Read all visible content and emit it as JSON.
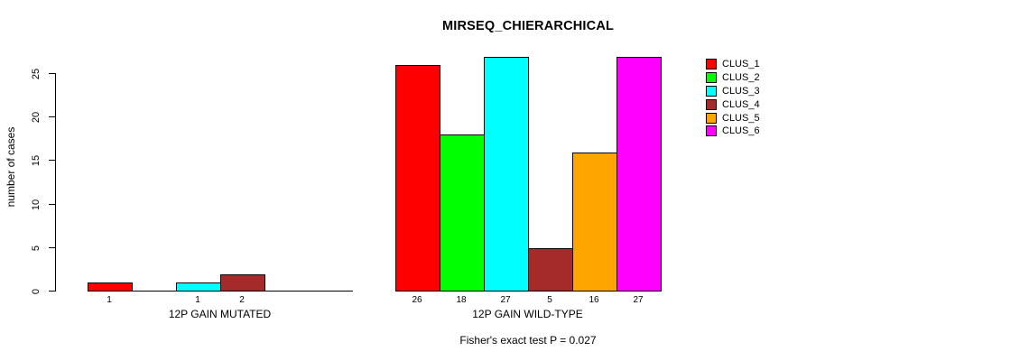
{
  "chart_data": {
    "type": "bar",
    "title": "MIRSEQ_CHIERARCHICAL",
    "ylabel": "number of cases",
    "xlabel": "",
    "ylim": [
      0,
      27
    ],
    "yticks": [
      0,
      5,
      10,
      15,
      20,
      25
    ],
    "grid": false,
    "legend_position": "top-right",
    "categories": [
      "12P GAIN MUTATED",
      "12P GAIN WILD-TYPE"
    ],
    "series": [
      {
        "name": "CLUS_1",
        "color": "#ff0000",
        "values": [
          1,
          26
        ]
      },
      {
        "name": "CLUS_2",
        "color": "#00ff00",
        "values": [
          0,
          18
        ]
      },
      {
        "name": "CLUS_3",
        "color": "#00ffff",
        "values": [
          1,
          27
        ]
      },
      {
        "name": "CLUS_4",
        "color": "#a52a2a",
        "values": [
          2,
          5
        ]
      },
      {
        "name": "CLUS_5",
        "color": "#ffa500",
        "values": [
          0,
          16
        ]
      },
      {
        "name": "CLUS_6",
        "color": "#ff00ff",
        "values": [
          0,
          27
        ]
      }
    ],
    "bar_value_labels": {
      "show": true,
      "hide_zero": true
    },
    "footnote": "Fisher's exact test P = 0.027",
    "bar_border_color": "#000000",
    "text_color": "#000000",
    "background": "#ffffff"
  }
}
